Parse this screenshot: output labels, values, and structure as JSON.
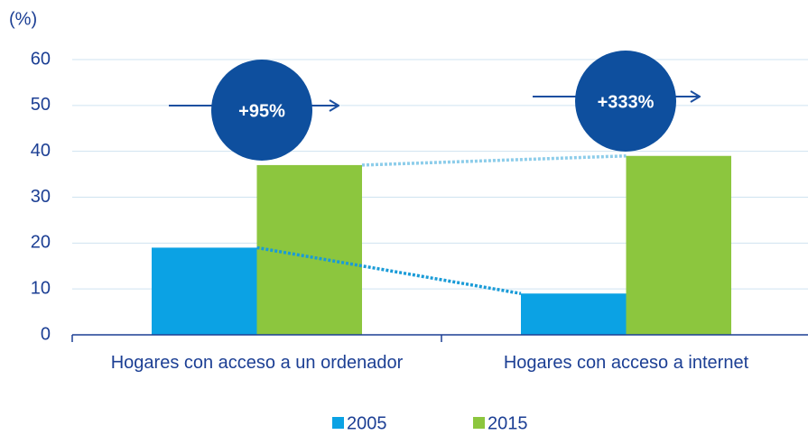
{
  "chart_data": {
    "type": "bar",
    "y_axis_label": "(%)",
    "categories": [
      "Hogares con acceso a un ordenador",
      "Hogares con acceso a internet"
    ],
    "series": [
      {
        "name": "2005",
        "color": "#0ba2e4",
        "values": [
          19,
          9
        ]
      },
      {
        "name": "2015",
        "color": "#8cc63e",
        "values": [
          37,
          39
        ]
      }
    ],
    "ylim": [
      0,
      60
    ],
    "yticks": [
      0,
      10,
      20,
      30,
      40,
      50,
      60
    ],
    "grid": true,
    "annotations": [
      "+95%",
      "+333%"
    ]
  }
}
